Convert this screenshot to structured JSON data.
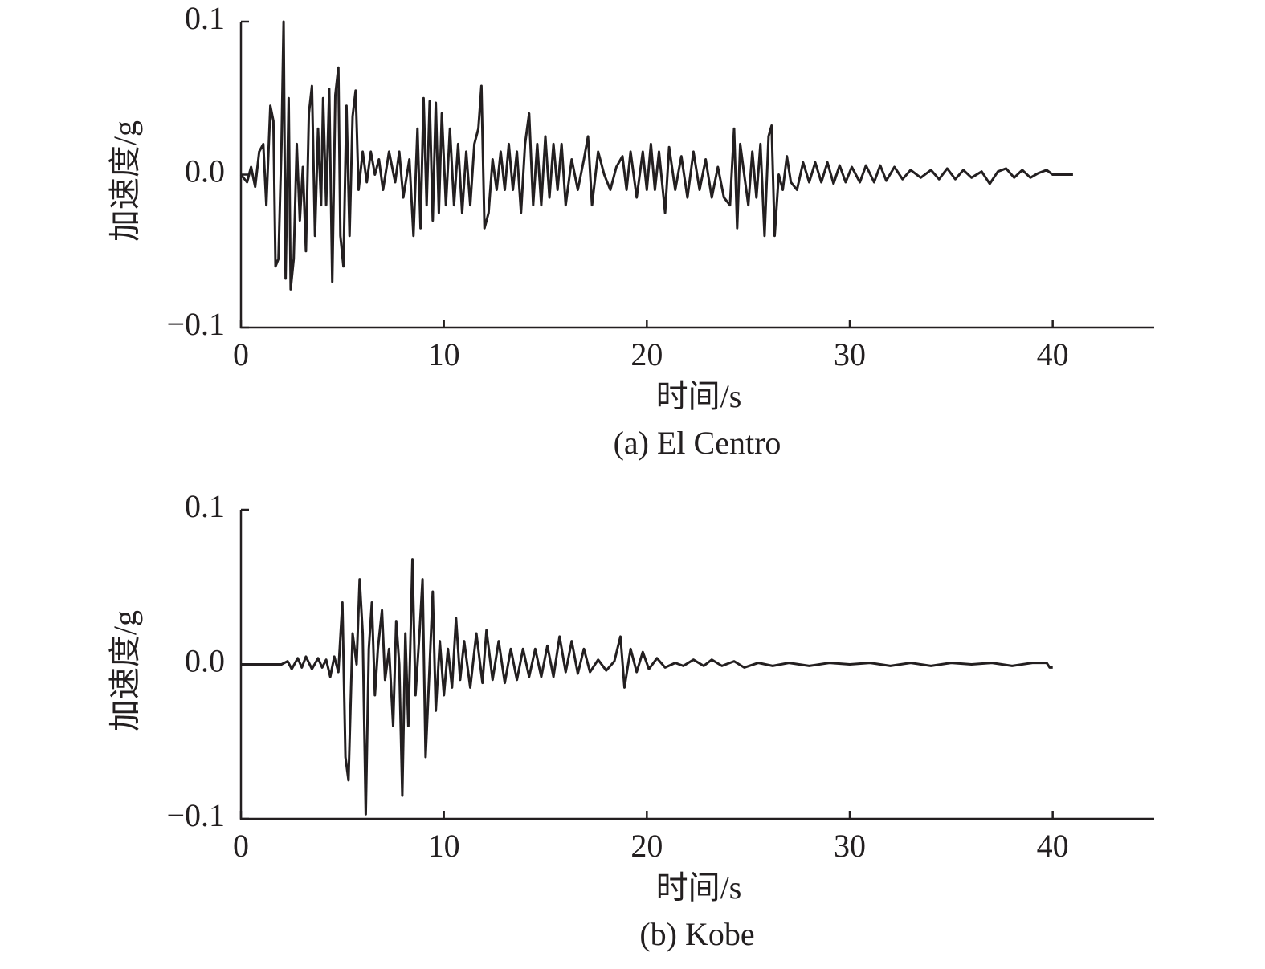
{
  "chart_data": [
    {
      "type": "line",
      "title": "(a) El Centro",
      "xlabel": "时间/s",
      "ylabel": "加速度/g",
      "color": "#231f20",
      "xlim": [
        0,
        45
      ],
      "xticks": [
        0,
        10,
        20,
        30,
        40
      ],
      "ylim": [
        -0.1,
        0.1
      ],
      "yticks": [
        {
          "value": -0.1,
          "label": "−0.1"
        },
        {
          "value": 0,
          "label": "0.0"
        },
        0.1
      ],
      "x": [
        0,
        0.3,
        0.5,
        0.7,
        0.9,
        1.1,
        1.25,
        1.45,
        1.6,
        1.7,
        1.85,
        2.0,
        2.1,
        2.2,
        2.35,
        2.45,
        2.6,
        2.75,
        2.9,
        3.05,
        3.2,
        3.35,
        3.5,
        3.65,
        3.8,
        3.95,
        4.05,
        4.2,
        4.35,
        4.5,
        4.65,
        4.8,
        4.9,
        5.05,
        5.2,
        5.35,
        5.5,
        5.65,
        5.8,
        6.0,
        6.2,
        6.4,
        6.6,
        6.8,
        7.0,
        7.3,
        7.6,
        7.8,
        8.0,
        8.3,
        8.5,
        8.7,
        8.85,
        9.0,
        9.15,
        9.3,
        9.45,
        9.6,
        9.75,
        9.9,
        10.1,
        10.3,
        10.5,
        10.7,
        10.9,
        11.1,
        11.3,
        11.5,
        11.7,
        11.85,
        12.0,
        12.2,
        12.4,
        12.6,
        12.8,
        13.0,
        13.2,
        13.4,
        13.6,
        13.8,
        14.0,
        14.2,
        14.4,
        14.6,
        14.8,
        15.0,
        15.2,
        15.4,
        15.6,
        15.8,
        16.0,
        16.3,
        16.6,
        16.9,
        17.1,
        17.3,
        17.6,
        17.9,
        18.2,
        18.5,
        18.8,
        19.0,
        19.2,
        19.5,
        19.8,
        20.0,
        20.2,
        20.4,
        20.6,
        20.9,
        21.1,
        21.4,
        21.7,
        22.0,
        22.3,
        22.6,
        22.9,
        23.2,
        23.5,
        23.8,
        24.1,
        24.3,
        24.45,
        24.6,
        24.8,
        25.0,
        25.2,
        25.4,
        25.6,
        25.8,
        26.0,
        26.15,
        26.3,
        26.5,
        26.7,
        26.9,
        27.1,
        27.4,
        27.7,
        28.0,
        28.3,
        28.6,
        28.9,
        29.2,
        29.5,
        29.8,
        30.1,
        30.5,
        30.8,
        31.2,
        31.5,
        31.8,
        32.2,
        32.6,
        33.0,
        33.5,
        34.0,
        34.4,
        34.8,
        35.2,
        35.6,
        36.0,
        36.5,
        36.9,
        37.3,
        37.7,
        38.1,
        38.5,
        38.9,
        39.3,
        39.7,
        40.0,
        41.0
      ],
      "values": [
        0,
        -0.005,
        0.005,
        -0.008,
        0.015,
        0.02,
        -0.02,
        0.045,
        0.035,
        -0.06,
        -0.055,
        0.02,
        0.1,
        -0.068,
        0.05,
        -0.075,
        -0.055,
        0.02,
        -0.03,
        0.005,
        -0.05,
        0.04,
        0.058,
        -0.04,
        0.03,
        -0.02,
        0.05,
        -0.02,
        0.056,
        -0.07,
        0.052,
        0.07,
        -0.04,
        -0.06,
        0.045,
        -0.04,
        0.038,
        0.055,
        -0.01,
        0.015,
        -0.005,
        0.015,
        0,
        0.01,
        -0.01,
        0.015,
        -0.005,
        0.015,
        -0.015,
        0.01,
        -0.04,
        0.03,
        -0.035,
        0.05,
        -0.02,
        0.048,
        -0.03,
        0.047,
        -0.025,
        0.04,
        -0.02,
        0.03,
        -0.02,
        0.02,
        -0.025,
        0.015,
        -0.02,
        0.02,
        0.03,
        0.058,
        -0.035,
        -0.025,
        0.01,
        -0.01,
        0.015,
        -0.01,
        0.02,
        -0.01,
        0.015,
        -0.025,
        0.02,
        0.04,
        -0.02,
        0.02,
        -0.02,
        0.025,
        -0.015,
        0.02,
        -0.01,
        0.02,
        -0.02,
        0.01,
        -0.01,
        0.01,
        0.025,
        -0.02,
        0.015,
        0,
        -0.01,
        0.005,
        0.012,
        -0.01,
        0.015,
        -0.015,
        0.015,
        -0.01,
        0.02,
        -0.01,
        0.015,
        -0.025,
        0.018,
        -0.01,
        0.012,
        -0.015,
        0.015,
        -0.01,
        0.01,
        -0.015,
        0.005,
        -0.015,
        -0.02,
        0.03,
        -0.035,
        0.02,
        0,
        -0.02,
        0.015,
        -0.015,
        0.02,
        -0.04,
        0.025,
        0.032,
        -0.04,
        0,
        -0.01,
        0.012,
        -0.005,
        -0.01,
        0.008,
        -0.005,
        0.008,
        -0.005,
        0.008,
        -0.006,
        0.006,
        -0.005,
        0.005,
        -0.005,
        0.006,
        -0.005,
        0.006,
        -0.004,
        0.005,
        -0.003,
        0.003,
        -0.002,
        0.003,
        -0.003,
        0.004,
        -0.003,
        0.003,
        -0.002,
        0.002,
        -0.006,
        0.002,
        0.004,
        -0.002,
        0.003,
        -0.002,
        0.001,
        0.003,
        0,
        0
      ]
    },
    {
      "type": "line",
      "title": "(b) Kobe",
      "xlabel": "时间/s",
      "ylabel": "加速度/g",
      "color": "#231f20",
      "xlim": [
        0,
        45
      ],
      "xticks": [
        0,
        10,
        20,
        30,
        40
      ],
      "ylim": [
        -0.1,
        0.1
      ],
      "yticks": [
        {
          "value": -0.1,
          "label": "−0.1"
        },
        {
          "value": 0,
          "label": "0.0"
        },
        0.1
      ],
      "x": [
        0,
        2.0,
        2.3,
        2.5,
        2.8,
        3.0,
        3.2,
        3.5,
        3.8,
        4.0,
        4.2,
        4.4,
        4.6,
        4.8,
        5.0,
        5.15,
        5.3,
        5.5,
        5.7,
        5.85,
        6.0,
        6.15,
        6.3,
        6.45,
        6.6,
        6.75,
        6.95,
        7.1,
        7.3,
        7.5,
        7.65,
        7.8,
        7.95,
        8.1,
        8.25,
        8.45,
        8.6,
        8.8,
        8.95,
        9.1,
        9.3,
        9.45,
        9.6,
        9.8,
        10.0,
        10.2,
        10.4,
        10.6,
        10.8,
        11.0,
        11.3,
        11.6,
        11.9,
        12.1,
        12.4,
        12.7,
        13.0,
        13.3,
        13.6,
        13.9,
        14.2,
        14.5,
        14.8,
        15.1,
        15.4,
        15.7,
        16.0,
        16.3,
        16.6,
        16.9,
        17.2,
        17.6,
        18.0,
        18.4,
        18.7,
        18.9,
        19.2,
        19.5,
        19.8,
        20.1,
        20.5,
        20.9,
        21.4,
        21.8,
        22.3,
        22.8,
        23.2,
        23.7,
        24.3,
        24.8,
        25.5,
        26.2,
        27.0,
        28.0,
        29.0,
        30.0,
        31.0,
        32.0,
        33.0,
        34.0,
        35.0,
        36.0,
        37.0,
        38.0,
        39.0,
        39.7,
        39.85,
        40.0
      ],
      "values": [
        0,
        0,
        0.002,
        -0.003,
        0.004,
        -0.002,
        0.005,
        -0.003,
        0.004,
        -0.002,
        0.003,
        -0.008,
        0.005,
        -0.005,
        0.04,
        -0.06,
        -0.075,
        0.02,
        0,
        0.055,
        0.02,
        -0.097,
        0.01,
        0.04,
        -0.02,
        0.01,
        0.035,
        -0.01,
        0.01,
        -0.04,
        0.028,
        0,
        -0.085,
        0.02,
        -0.04,
        0.068,
        -0.02,
        0.02,
        0.055,
        -0.06,
        0,
        0.047,
        -0.03,
        0.015,
        -0.02,
        0.01,
        -0.015,
        0.03,
        -0.01,
        0.015,
        -0.015,
        0.02,
        -0.012,
        0.022,
        -0.01,
        0.015,
        -0.012,
        0.01,
        -0.01,
        0.01,
        -0.008,
        0.01,
        -0.008,
        0.012,
        -0.008,
        0.018,
        -0.005,
        0.015,
        -0.006,
        0.01,
        -0.005,
        0.003,
        -0.004,
        0.002,
        0.018,
        -0.015,
        0.01,
        -0.005,
        0.008,
        -0.003,
        0.004,
        -0.002,
        0.001,
        -0.001,
        0.003,
        -0.001,
        0.003,
        -0.001,
        0.002,
        -0.002,
        0.001,
        -0.001,
        0.001,
        -0.001,
        0.001,
        0,
        0.001,
        -0.001,
        0.001,
        -0.001,
        0.001,
        0,
        0.001,
        -0.001,
        0.001,
        0.001,
        -0.002,
        -0.002
      ]
    }
  ]
}
